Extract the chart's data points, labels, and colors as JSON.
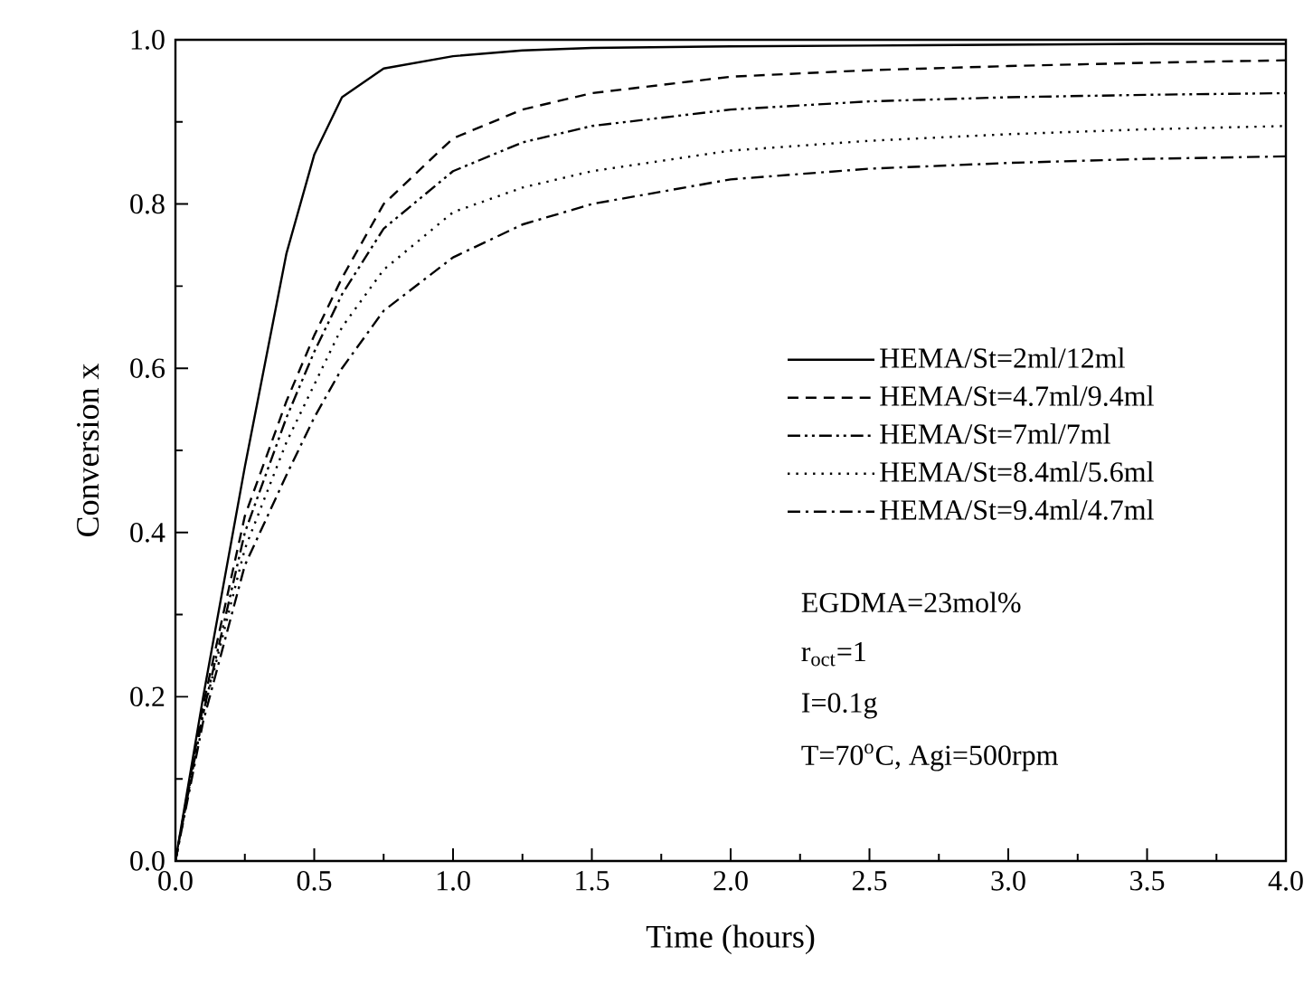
{
  "chart_data": {
    "type": "line",
    "xlabel": "Time (hours)",
    "ylabel": "Conversion x",
    "xlim": [
      0,
      4
    ],
    "ylim": [
      0,
      1
    ],
    "xticks": [
      {
        "value": 0,
        "label": "0.0"
      },
      {
        "value": 0.5,
        "label": "0.5"
      },
      {
        "value": 1,
        "label": "1.0"
      },
      {
        "value": 1.5,
        "label": "1.5"
      },
      {
        "value": 2,
        "label": "2.0"
      },
      {
        "value": 2.5,
        "label": "2.5"
      },
      {
        "value": 3,
        "label": "3.0"
      },
      {
        "value": 3.5,
        "label": "3.5"
      },
      {
        "value": 4,
        "label": "4.0"
      }
    ],
    "yticks": [
      {
        "value": 0,
        "label": "0.0"
      },
      {
        "value": 0.2,
        "label": "0.2"
      },
      {
        "value": 0.4,
        "label": "0.4"
      },
      {
        "value": 0.6,
        "label": "0.6"
      },
      {
        "value": 0.8,
        "label": "0.8"
      },
      {
        "value": 1,
        "label": "1.0"
      }
    ],
    "x": [
      0,
      0.1,
      0.25,
      0.4,
      0.5,
      0.6,
      0.75,
      1.0,
      1.25,
      1.5,
      2.0,
      2.5,
      3.0,
      3.5,
      4.0
    ],
    "series": [
      {
        "name": "HEMA/St=2ml/12ml",
        "color": "#000000",
        "line_style": "solid",
        "values": [
          0,
          0.2,
          0.48,
          0.74,
          0.86,
          0.93,
          0.965,
          0.98,
          0.987,
          0.99,
          0.992,
          0.993,
          0.994,
          0.995,
          0.995
        ]
      },
      {
        "name": "HEMA/St=4.7ml/9.4ml",
        "color": "#000000",
        "line_style": "dashed",
        "values": [
          0,
          0.19,
          0.42,
          0.56,
          0.64,
          0.71,
          0.8,
          0.88,
          0.915,
          0.935,
          0.955,
          0.963,
          0.968,
          0.972,
          0.975
        ]
      },
      {
        "name": "HEMA/St=7ml/7ml",
        "color": "#000000",
        "line_style": "dashdotdotted",
        "values": [
          0,
          0.18,
          0.4,
          0.54,
          0.62,
          0.69,
          0.77,
          0.84,
          0.875,
          0.895,
          0.915,
          0.925,
          0.93,
          0.933,
          0.935
        ]
      },
      {
        "name": "HEMA/St=8.4ml/5.6ml",
        "color": "#000000",
        "line_style": "dotted",
        "values": [
          0,
          0.18,
          0.38,
          0.51,
          0.58,
          0.65,
          0.72,
          0.79,
          0.82,
          0.84,
          0.865,
          0.877,
          0.885,
          0.891,
          0.895
        ]
      },
      {
        "name": "HEMA/St=9.4ml/4.7ml",
        "color": "#000000",
        "line_style": "dashdotted",
        "values": [
          0,
          0.17,
          0.36,
          0.47,
          0.54,
          0.6,
          0.67,
          0.735,
          0.775,
          0.8,
          0.83,
          0.843,
          0.85,
          0.855,
          0.858
        ]
      }
    ],
    "legend": "right",
    "annotations": [
      "EGDMA=23mol%",
      "r$_{oct}$=1",
      "I=0.1g",
      "T=70$^{o}$C, Agi=500rpm"
    ]
  }
}
